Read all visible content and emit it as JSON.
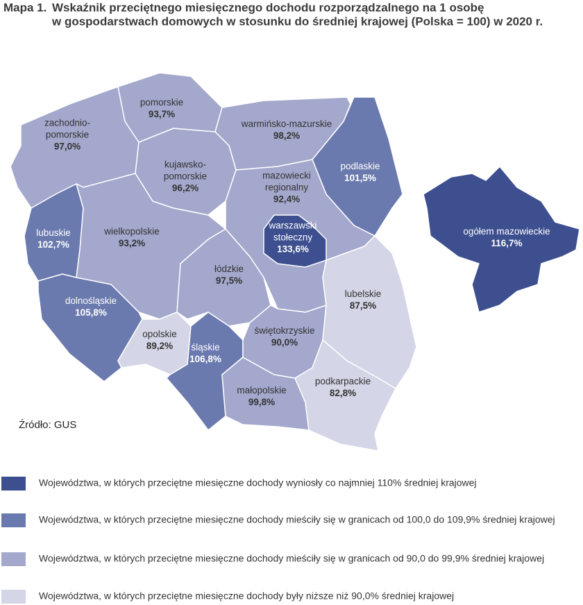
{
  "header": {
    "label": "Mapa 1.",
    "title_lines": [
      "Wskaźnik przeciętnego miesięcznego dochodu rozporządzalnego na 1 osobę",
      "w gospodarstwach domowych w stosunku do średniej krajowej (Polska = 100) w 2020 r."
    ]
  },
  "regions": [
    {
      "name": [
        "zachodnio-",
        "pomorskie"
      ],
      "value": "97,0%",
      "color": "#a3a8cc"
    },
    {
      "name": [
        "pomorskie"
      ],
      "value": "93,7%",
      "color": "#a3a8cc"
    },
    {
      "name": [
        "warmińsko-mazurskie"
      ],
      "value": "98,2%",
      "color": "#a3a8cc"
    },
    {
      "name": [
        "podlaskie"
      ],
      "value": "101,5%",
      "color": "#6b7aae"
    },
    {
      "name": [
        "kujawsko-",
        "pomorskie"
      ],
      "value": "96,2%",
      "color": "#a3a8cc"
    },
    {
      "name": [
        "mazowiecki",
        "regionalny"
      ],
      "value": "92,4%",
      "color": "#a3a8cc"
    },
    {
      "name": [
        "lubuskie"
      ],
      "value": "102,7%",
      "color": "#6b7aae"
    },
    {
      "name": [
        "wielkopolskie"
      ],
      "value": "93,2%",
      "color": "#a3a8cc"
    },
    {
      "name": [
        "dolnośląskie"
      ],
      "value": "105,8%",
      "color": "#6b7aae"
    },
    {
      "name": [
        "opolskie"
      ],
      "value": "89,2%",
      "color": "#d4d5e6"
    },
    {
      "name": [
        "łódzkie"
      ],
      "value": "97,5%",
      "color": "#a3a8cc"
    },
    {
      "name": [
        "śląskie"
      ],
      "value": "106,8%",
      "color": "#6b7aae"
    },
    {
      "name": [
        "świętokrzyskie"
      ],
      "value": "90,0%",
      "color": "#a3a8cc"
    },
    {
      "name": [
        "małopolskie"
      ],
      "value": "99,8%",
      "color": "#a3a8cc"
    },
    {
      "name": [
        "lubelskie"
      ],
      "value": "87,5%",
      "color": "#d4d5e6"
    },
    {
      "name": [
        "podkarpackie"
      ],
      "value": "82,8%",
      "color": "#d4d5e6"
    },
    {
      "name": [
        "warszawski",
        "stołeczny"
      ],
      "value": "133,6%",
      "color": "#3d4f8f"
    },
    {
      "name": [
        "ogółem mazowieckie"
      ],
      "value": "116,7%",
      "color": "#3d4f8f"
    }
  ],
  "source": "Źródło: GUS",
  "legend": [
    {
      "label": "Województwa, w których przeciętne miesięczne dochody wyniosły co najmniej 110% średniej krajowej",
      "color": "#3d4f8f"
    },
    {
      "label": "Województwa, w których przeciętne miesięczne dochody mieściły się w granicach od 100,0 do 109,9% średniej krajowej",
      "color": "#6b7aae"
    },
    {
      "label": "Województwa, w których przeciętne miesięczne dochody mieściły się w granicach od 90,0 do 99,9% średniej krajowej",
      "color": "#a3a8cc"
    },
    {
      "label": "Województwa, w których przeciętne miesięczne dochody były niższe niż 90,0% średniej krajowej",
      "color": "#d4d5e6"
    }
  ]
}
